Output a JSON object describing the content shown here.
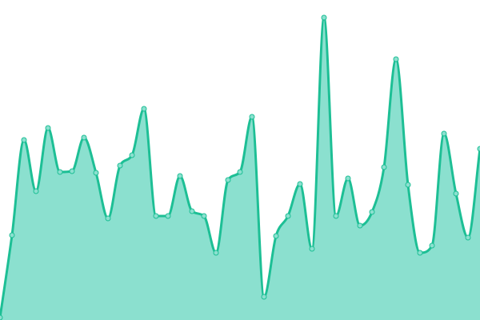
{
  "chart_data": {
    "type": "area",
    "title": "",
    "xlabel": "",
    "ylabel": "",
    "x": [
      0,
      1,
      2,
      3,
      4,
      5,
      6,
      7,
      8,
      9,
      10,
      11,
      12,
      13,
      14,
      15,
      16,
      17,
      18,
      19,
      20,
      21,
      22,
      23,
      24,
      25,
      26,
      27,
      28,
      29,
      30,
      31,
      32,
      33,
      34,
      35,
      36,
      37,
      38,
      39,
      40
    ],
    "values": [
      3,
      106,
      225,
      161,
      240,
      185,
      186,
      228,
      184,
      127,
      193,
      206,
      264,
      130,
      130,
      180,
      136,
      130,
      84,
      175,
      185,
      254,
      29,
      105,
      130,
      170,
      89,
      378,
      130,
      177,
      118,
      135,
      191,
      326,
      169,
      84,
      93,
      233,
      158,
      103,
      214
    ],
    "xlim": [
      0,
      40
    ],
    "ylim": [
      0,
      400
    ],
    "grid": false,
    "axes_visible": false,
    "smooth": true,
    "markers": true,
    "colors": {
      "line": "#1dbf95",
      "fill": "#8be0cf",
      "marker_fill": "#8be0cf",
      "marker_stroke": "#1dbf95"
    }
  }
}
